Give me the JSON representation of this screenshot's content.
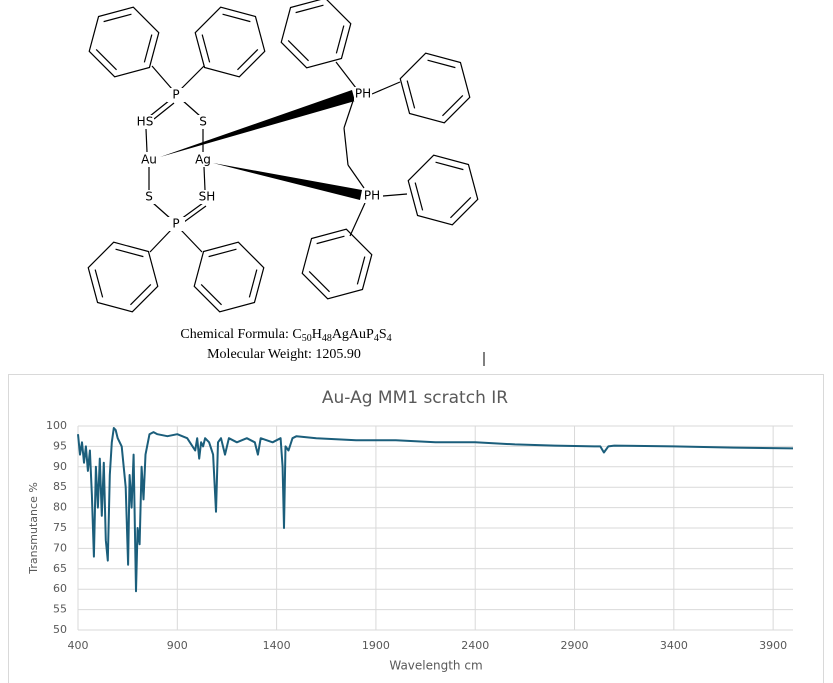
{
  "molecule": {
    "atoms": [
      "P",
      "HS",
      "S",
      "Au",
      "Ag",
      "S",
      "SH",
      "P",
      "PH",
      "PH"
    ],
    "formula_parts": [
      "Chemical Formula: C",
      "50",
      "H",
      "48",
      "AgAuP",
      "4",
      "S",
      "4"
    ],
    "weight": "Molecular Weight: 1205.90"
  },
  "chart_data": {
    "type": "line",
    "title": "Au-Ag MM1 scratch IR",
    "x_label": "Wavelength cm",
    "y_label": "Transmutance %",
    "x": [
      400,
      410,
      420,
      430,
      440,
      450,
      460,
      470,
      480,
      490,
      500,
      510,
      520,
      530,
      540,
      550,
      560,
      570,
      580,
      590,
      600,
      620,
      640,
      652,
      660,
      670,
      680,
      692,
      700,
      710,
      720,
      730,
      740,
      760,
      780,
      800,
      850,
      900,
      950,
      990,
      1000,
      1010,
      1020,
      1030,
      1040,
      1060,
      1080,
      1095,
      1105,
      1120,
      1140,
      1160,
      1200,
      1250,
      1290,
      1306,
      1320,
      1380,
      1420,
      1430,
      1437,
      1445,
      1460,
      1480,
      1500,
      1600,
      1800,
      2000,
      2200,
      2400,
      2600,
      2800,
      3000,
      3030,
      3048,
      3070,
      3100,
      3400,
      3700,
      4000
    ],
    "series": [
      {
        "color": "#1b5e7b",
        "values": [
          98,
          93,
          96,
          91,
          95,
          89,
          94,
          83,
          68,
          90,
          80,
          92,
          78,
          91,
          72,
          67,
          88,
          96,
          99.5,
          99,
          97,
          95,
          85,
          66,
          88,
          80,
          93,
          59.5,
          75,
          71,
          90,
          82,
          93,
          98,
          98.5,
          98,
          97.5,
          98,
          97,
          94,
          97,
          92,
          96,
          95,
          97,
          96,
          93,
          79,
          96,
          97,
          93,
          97,
          96,
          97,
          96,
          93,
          97,
          96,
          97,
          90,
          75,
          95,
          94,
          97,
          97.5,
          97,
          96.5,
          96.5,
          96,
          96,
          95.5,
          95.2,
          95,
          95,
          93.5,
          95,
          95.2,
          95,
          94.7,
          94.5
        ]
      }
    ],
    "xlim": [
      400,
      4000
    ],
    "ylim": [
      50,
      100
    ],
    "xticks": [
      400,
      900,
      1400,
      1900,
      2400,
      2900,
      3400,
      3900
    ],
    "yticks": [
      50,
      55,
      60,
      65,
      70,
      75,
      80,
      85,
      90,
      95,
      100
    ],
    "grid": true
  }
}
